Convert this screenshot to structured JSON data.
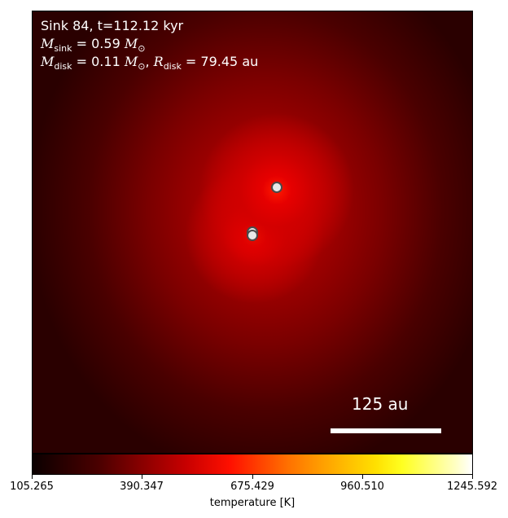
{
  "panel": {
    "title_line": "Sink 84, t=112.12 kyr",
    "sink_mass": {
      "symbol": "M",
      "subscript": "sink",
      "value": "= 0.59",
      "unit_symbol": "M",
      "unit_subscript": "⊙"
    },
    "disk": {
      "mass_symbol": "M",
      "mass_subscript": "disk",
      "mass_value": "= 0.11",
      "mass_unit_symbol": "M",
      "mass_unit_subscript": "⊙",
      "separator": ",",
      "radius_symbol": "R",
      "radius_subscript": "disk",
      "radius_value": "= 79.45",
      "radius_unit": "au"
    },
    "scale_bar_label": "125 au"
  },
  "colorbar": {
    "label": "temperature [K]",
    "ticks": [
      "105.265",
      "390.347",
      "675.429",
      "960.510",
      "1245.592"
    ],
    "colors": {
      "low": "#0b0000",
      "mid": "#ff1000",
      "high": "#ffffff"
    }
  },
  "sinks": [
    {
      "name": "sink-upper"
    },
    {
      "name": "sink-lower-1"
    },
    {
      "name": "sink-lower-2"
    }
  ]
}
